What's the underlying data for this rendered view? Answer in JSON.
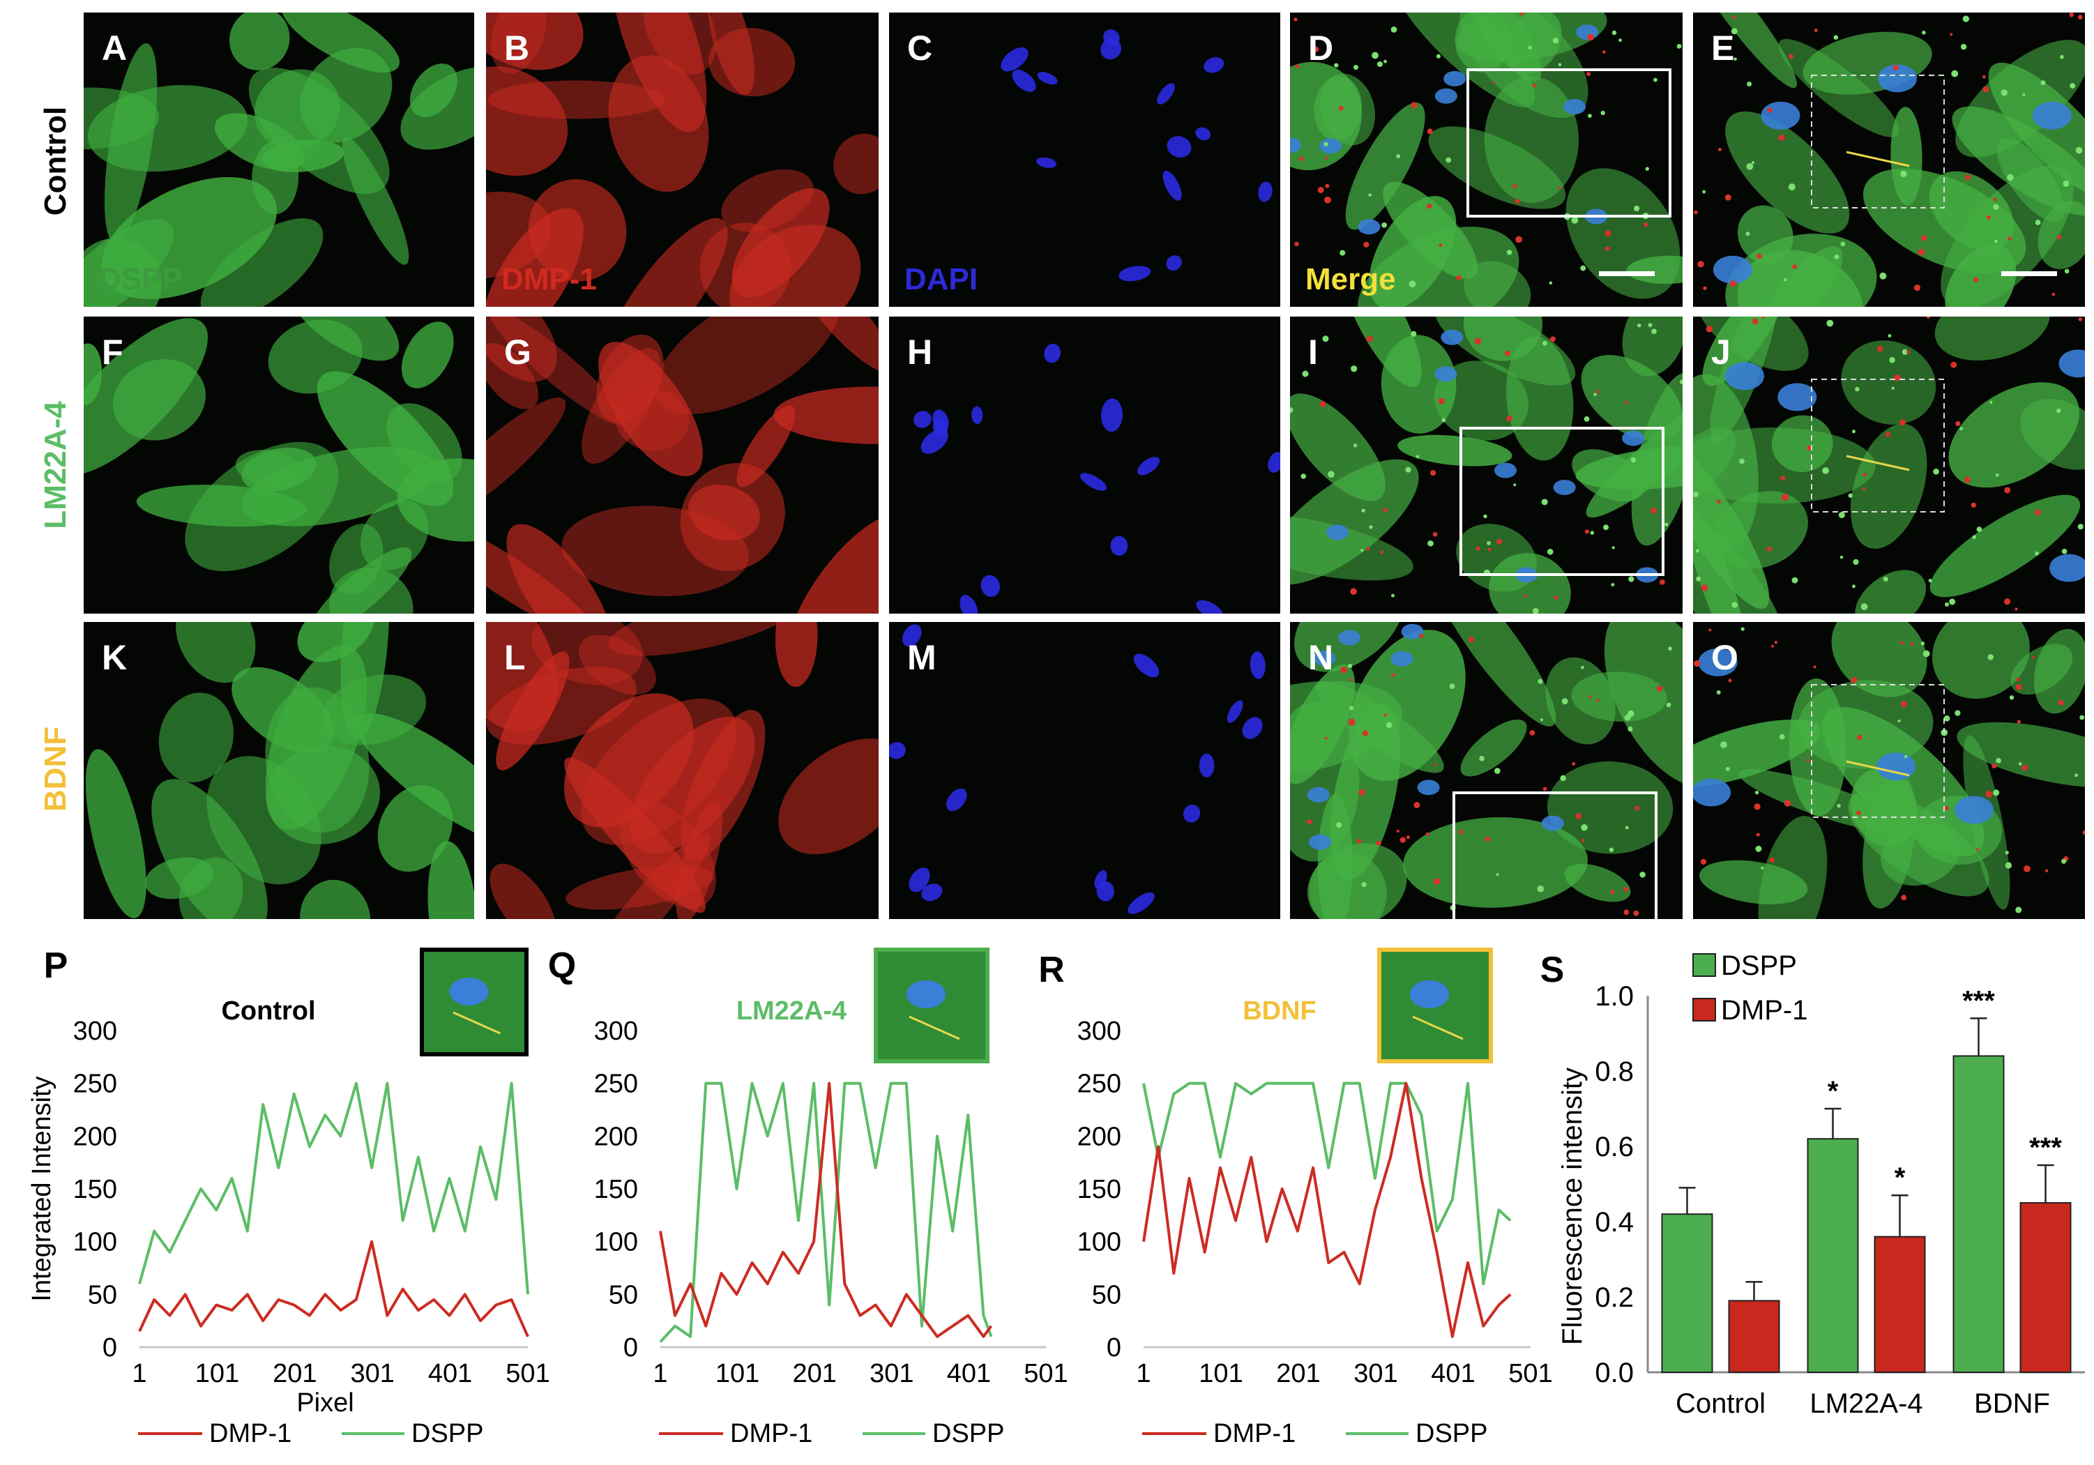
{
  "rows": [
    {
      "label": "Control",
      "color": "#000000"
    },
    {
      "label": "LM22A-4",
      "color": "#5cbd67"
    },
    {
      "label": "BDNF",
      "color": "#f2c038"
    }
  ],
  "panel_letters": [
    "A",
    "B",
    "C",
    "D",
    "E",
    "F",
    "G",
    "H",
    "I",
    "J",
    "K",
    "L",
    "M",
    "N",
    "O"
  ],
  "channel_labels": [
    {
      "text": "DSPP",
      "color": "#3e9a3e"
    },
    {
      "text": "DMP-1",
      "color": "#d22a20"
    },
    {
      "text": "DAPI",
      "color": "#2d2ad8"
    },
    {
      "text": "Merge",
      "color": "#f3e03a"
    }
  ],
  "colors": {
    "dspp": "#5cbd67",
    "dmp1": "#cc2c22",
    "dspp_bar": "#4cae4f",
    "dmp1_bar": "#c8281d"
  },
  "chart_data": [
    {
      "panel": "P",
      "type": "line",
      "title": "Control",
      "xlabel": "Pixel",
      "ylabel": "Integrated Intensity",
      "xticks": [
        "1",
        "101",
        "201",
        "301",
        "401",
        "501"
      ],
      "yticks": [
        "0",
        "50",
        "100",
        "150",
        "200",
        "250",
        "300"
      ],
      "xlim": [
        1,
        501
      ],
      "ylim": [
        0,
        300
      ],
      "legend": [
        "DMP-1",
        "DSPP"
      ],
      "series": [
        {
          "name": "DSPP",
          "x": [
            1,
            20,
            40,
            60,
            80,
            100,
            120,
            140,
            160,
            180,
            200,
            220,
            240,
            260,
            280,
            300,
            320,
            340,
            360,
            380,
            400,
            420,
            440,
            460,
            480,
            501
          ],
          "y": [
            60,
            110,
            90,
            120,
            150,
            130,
            160,
            110,
            230,
            170,
            240,
            190,
            220,
            200,
            250,
            170,
            250,
            120,
            180,
            110,
            160,
            110,
            190,
            140,
            250,
            50
          ]
        },
        {
          "name": "DMP-1",
          "x": [
            1,
            20,
            40,
            60,
            80,
            100,
            120,
            140,
            160,
            180,
            200,
            220,
            240,
            260,
            280,
            300,
            320,
            340,
            360,
            380,
            400,
            420,
            440,
            460,
            480,
            501
          ],
          "y": [
            15,
            45,
            30,
            50,
            20,
            40,
            35,
            50,
            25,
            45,
            40,
            30,
            50,
            35,
            45,
            100,
            30,
            55,
            35,
            45,
            30,
            50,
            25,
            40,
            45,
            10
          ]
        }
      ]
    },
    {
      "panel": "Q",
      "type": "line",
      "title": "LM22A-4",
      "xlabel": "",
      "ylabel": "",
      "xticks": [
        "1",
        "101",
        "201",
        "301",
        "401",
        "501"
      ],
      "yticks": [
        "0",
        "50",
        "100",
        "150",
        "200",
        "250",
        "300"
      ],
      "xlim": [
        1,
        501
      ],
      "ylim": [
        0,
        300
      ],
      "legend": [
        "DMP-1",
        "DSPP"
      ],
      "series": [
        {
          "name": "DSPP",
          "x": [
            1,
            20,
            40,
            60,
            80,
            100,
            120,
            140,
            160,
            180,
            200,
            220,
            240,
            260,
            280,
            300,
            320,
            340,
            360,
            380,
            400,
            420,
            430
          ],
          "y": [
            5,
            20,
            10,
            250,
            250,
            150,
            250,
            200,
            250,
            120,
            250,
            40,
            250,
            250,
            170,
            250,
            250,
            20,
            200,
            110,
            220,
            30,
            10
          ]
        },
        {
          "name": "DMP-1",
          "x": [
            1,
            20,
            40,
            60,
            80,
            100,
            120,
            140,
            160,
            180,
            200,
            220,
            240,
            260,
            280,
            300,
            320,
            340,
            360,
            380,
            400,
            420,
            430
          ],
          "y": [
            110,
            30,
            60,
            20,
            70,
            50,
            80,
            60,
            90,
            70,
            100,
            250,
            60,
            30,
            40,
            20,
            50,
            30,
            10,
            20,
            30,
            10,
            20
          ]
        }
      ]
    },
    {
      "panel": "R",
      "type": "line",
      "title": "BDNF",
      "xlabel": "",
      "ylabel": "",
      "xticks": [
        "1",
        "101",
        "201",
        "301",
        "401",
        "501"
      ],
      "yticks": [
        "0",
        "50",
        "100",
        "150",
        "200",
        "250",
        "300"
      ],
      "xlim": [
        1,
        501
      ],
      "ylim": [
        0,
        300
      ],
      "legend": [
        "DMP-1",
        "DSPP"
      ],
      "series": [
        {
          "name": "DSPP",
          "x": [
            1,
            20,
            40,
            60,
            80,
            100,
            120,
            140,
            160,
            180,
            200,
            220,
            240,
            260,
            280,
            300,
            320,
            340,
            360,
            380,
            400,
            420,
            440,
            460,
            475
          ],
          "y": [
            250,
            180,
            240,
            250,
            250,
            180,
            250,
            240,
            250,
            250,
            250,
            250,
            170,
            250,
            250,
            160,
            250,
            250,
            220,
            110,
            140,
            250,
            60,
            130,
            120
          ]
        },
        {
          "name": "DMP-1",
          "x": [
            1,
            20,
            40,
            60,
            80,
            100,
            120,
            140,
            160,
            180,
            200,
            220,
            240,
            260,
            280,
            300,
            320,
            340,
            360,
            380,
            400,
            420,
            440,
            460,
            475
          ],
          "y": [
            100,
            190,
            70,
            160,
            90,
            170,
            120,
            180,
            100,
            150,
            110,
            170,
            80,
            90,
            60,
            130,
            180,
            250,
            160,
            90,
            10,
            80,
            20,
            40,
            50
          ]
        }
      ]
    },
    {
      "panel": "S",
      "type": "bar",
      "xlabel": "",
      "ylabel": "Fluorescence intensity",
      "categories": [
        "Control",
        "LM22A-4",
        "BDNF"
      ],
      "yticks": [
        "0.0",
        "0.2",
        "0.4",
        "0.6",
        "0.8",
        "1.0"
      ],
      "ylim": [
        0,
        1.0
      ],
      "legend_position": "top-left",
      "series": [
        {
          "name": "DSPP",
          "values": [
            0.42,
            0.62,
            0.84
          ],
          "errors": [
            0.07,
            0.08,
            0.1
          ],
          "significance": [
            "",
            "*",
            "***"
          ]
        },
        {
          "name": "DMP-1",
          "values": [
            0.19,
            0.36,
            0.45
          ],
          "errors": [
            0.05,
            0.11,
            0.1
          ],
          "significance": [
            "",
            "*",
            "***"
          ]
        }
      ]
    }
  ]
}
